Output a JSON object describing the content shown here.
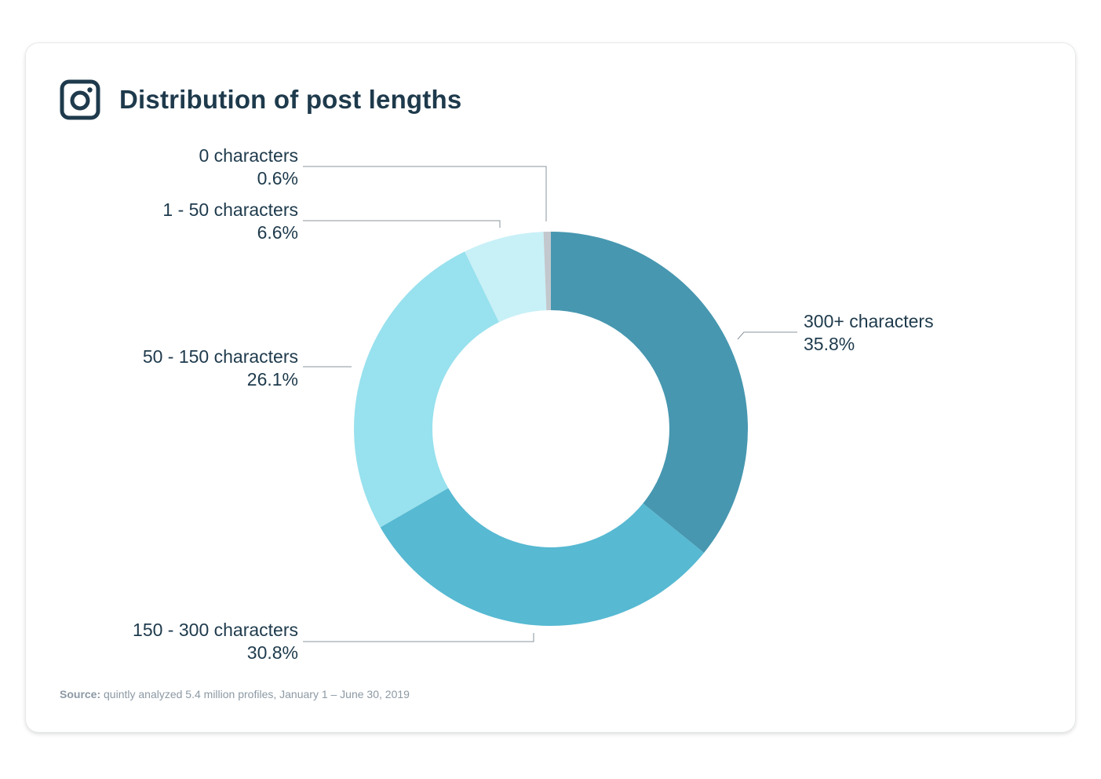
{
  "header": {
    "title": "Distribution of post lengths",
    "icon": "instagram-icon"
  },
  "chart_data": {
    "type": "pie",
    "donut": true,
    "title": "Distribution of post lengths",
    "slices": [
      {
        "label": "300+ characters",
        "value": 35.8,
        "display": "35.8%",
        "color": "#4797b0"
      },
      {
        "label": "150 - 300 characters",
        "value": 30.8,
        "display": "30.8%",
        "color": "#57b9d2"
      },
      {
        "label": "50 - 150 characters",
        "value": 26.1,
        "display": "26.1%",
        "color": "#98e1ee"
      },
      {
        "label": "1 - 50 characters",
        "value": 6.6,
        "display": "6.6%",
        "color": "#c8f0f7"
      },
      {
        "label": "0 characters",
        "value": 0.6,
        "display": "0.6%",
        "color": "#c2c8cd"
      }
    ]
  },
  "footer": {
    "source_label": "Source:",
    "source_text": " quintly analyzed 5.4 million profiles, January 1 – June 30, 2019"
  },
  "colors": {
    "text": "#1e3a4c",
    "leader_line": "#8a959e",
    "source_text": "#8c99a4"
  }
}
